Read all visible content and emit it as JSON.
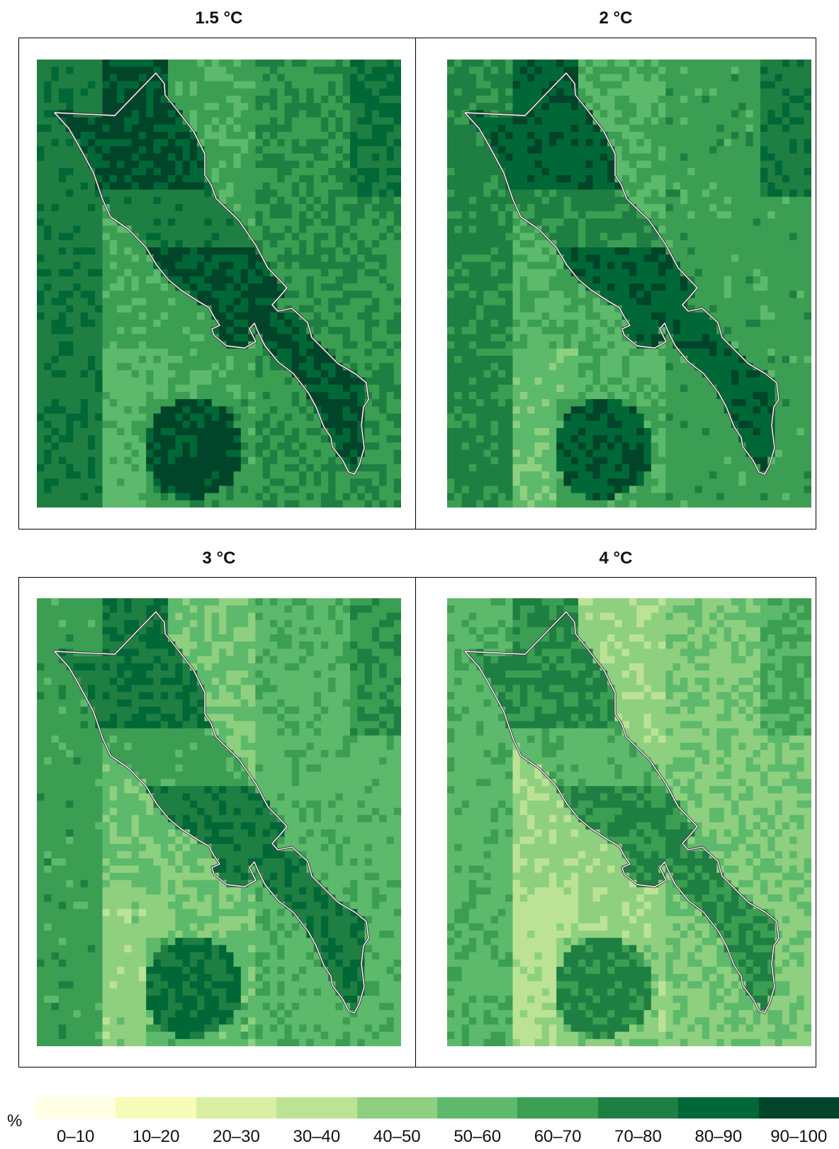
{
  "panels": [
    {
      "title": "1.5 °C",
      "warming_level": 1.5
    },
    {
      "title": "2 °C",
      "warming_level": 2
    },
    {
      "title": "3 °C",
      "warming_level": 3
    },
    {
      "title": "4 °C",
      "warming_level": 4
    }
  ],
  "legend": {
    "unit": "%",
    "classes": [
      {
        "label": "0–10",
        "color": "#ffffe5"
      },
      {
        "label": "10–20",
        "color": "#f7fcb9"
      },
      {
        "label": "20–30",
        "color": "#d9f0a3"
      },
      {
        "label": "30–40",
        "color": "#bce395"
      },
      {
        "label": "40–50",
        "color": "#8ed07f"
      },
      {
        "label": "50–60",
        "color": "#5db96b"
      },
      {
        "label": "60–70",
        "color": "#3b9e52"
      },
      {
        "label": "70–80",
        "color": "#1f7f42"
      },
      {
        "label": "80–90",
        "color": "#006837"
      },
      {
        "label": "90–100",
        "color": "#00452a"
      }
    ]
  }
}
